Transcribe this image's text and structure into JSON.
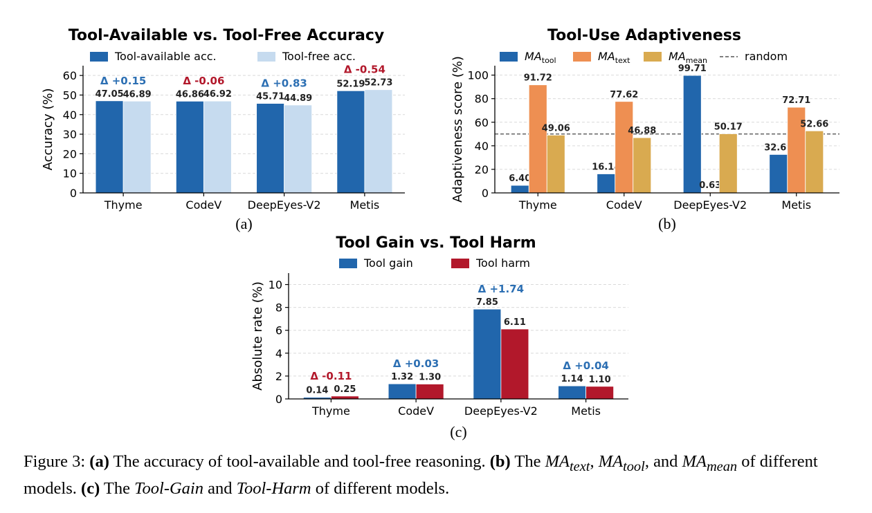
{
  "chart_data": [
    {
      "id": "a",
      "type": "bar",
      "title": "Tool-Available vs. Tool-Free Accuracy",
      "panel_label": "(a)",
      "ylabel": "Accuracy (%)",
      "ylim": [
        0,
        65
      ],
      "yticks": [
        0,
        10,
        20,
        30,
        40,
        50,
        60
      ],
      "grid": true,
      "legend_position": "top",
      "categories": [
        "Thyme",
        "CodeV",
        "DeepEyes-V2",
        "Metis"
      ],
      "series": [
        {
          "name": "Tool-available acc.",
          "color": "#2166ac",
          "values": [
            47.05,
            46.86,
            45.71,
            52.19
          ],
          "labels": [
            "47.05",
            "46.86",
            "45.71",
            "52.19"
          ]
        },
        {
          "name": "Tool-free acc.",
          "color": "#c6dbef",
          "values": [
            46.89,
            46.92,
            44.89,
            52.73
          ],
          "labels": [
            "46.89",
            "46.92",
            "44.89",
            "52.73"
          ]
        }
      ],
      "annotations": [
        "Δ +0.15",
        "Δ -0.06",
        "Δ +0.83",
        "Δ -0.54"
      ],
      "annotation_colors": [
        "#2c6fb3",
        "#b2182b",
        "#2c6fb3",
        "#b2182b"
      ]
    },
    {
      "id": "b",
      "type": "bar",
      "title": "Tool-Use Adaptiveness",
      "panel_label": "(b)",
      "ylabel": "Adaptiveness score (%)",
      "ylim": [
        0,
        108
      ],
      "yticks": [
        0,
        20,
        40,
        60,
        80,
        100
      ],
      "grid": true,
      "legend_position": "top",
      "categories": [
        "Thyme",
        "CodeV",
        "DeepEyes-V2",
        "Metis"
      ],
      "series": [
        {
          "name": "MA",
          "sub": "tool",
          "color": "#2166ac",
          "values": [
            6.4,
            16.14,
            99.71,
            32.61
          ],
          "labels": [
            "6.40",
            "16.14",
            "99.71",
            "32.61"
          ]
        },
        {
          "name": "MA",
          "sub": "text",
          "color": "#ee8f52",
          "values": [
            91.72,
            77.62,
            0.63,
            72.71
          ],
          "labels": [
            "91.72",
            "77.62",
            "0.63",
            "72.71"
          ]
        },
        {
          "name": "MA",
          "sub": "mean",
          "color": "#d9aa50",
          "values": [
            49.06,
            46.88,
            50.17,
            52.66
          ],
          "labels": [
            "49.06",
            "46.88",
            "50.17",
            "52.66"
          ]
        }
      ],
      "reference_line": {
        "name": "random",
        "value": 50,
        "color": "#555555"
      }
    },
    {
      "id": "c",
      "type": "bar",
      "title": "Tool Gain vs. Tool Harm",
      "panel_label": "(c)",
      "ylabel": "Absolute rate (%)",
      "ylim": [
        0,
        11
      ],
      "yticks": [
        0,
        2,
        4,
        6,
        8,
        10
      ],
      "grid": true,
      "legend_position": "top",
      "categories": [
        "Thyme",
        "CodeV",
        "DeepEyes-V2",
        "Metis"
      ],
      "series": [
        {
          "name": "Tool gain",
          "color": "#2166ac",
          "values": [
            0.14,
            1.32,
            7.85,
            1.14
          ],
          "labels": [
            "0.14",
            "1.32",
            "7.85",
            "1.14"
          ]
        },
        {
          "name": "Tool harm",
          "color": "#b2182b",
          "values": [
            0.25,
            1.3,
            6.11,
            1.1
          ],
          "labels": [
            "0.25",
            "1.30",
            "6.11",
            "1.10"
          ]
        }
      ],
      "annotations": [
        "Δ -0.11",
        "Δ +0.03",
        "Δ +1.74",
        "Δ +0.04"
      ],
      "annotation_colors": [
        "#b2182b",
        "#2c6fb3",
        "#2c6fb3",
        "#2c6fb3"
      ]
    }
  ],
  "caption": {
    "figure_label": "Figure 3:",
    "a_marker": "(a)",
    "a_text": "The accuracy of tool-available and tool-free reasoning.",
    "b_marker": "(b)",
    "b_the": "The",
    "b_ma1": "MA",
    "b_ma1_sub": "text",
    "b_sep1": ",",
    "b_ma2": "MA",
    "b_ma2_sub": "tool",
    "b_sep2": ", and",
    "b_ma3": "MA",
    "b_ma3_sub": "mean",
    "b_tail": "of different models.",
    "c_marker": "(c)",
    "c_the": "The",
    "c_gain": "Tool-Gain",
    "c_and": "and",
    "c_harm": "Tool-Harm",
    "c_tail": "of different models."
  }
}
